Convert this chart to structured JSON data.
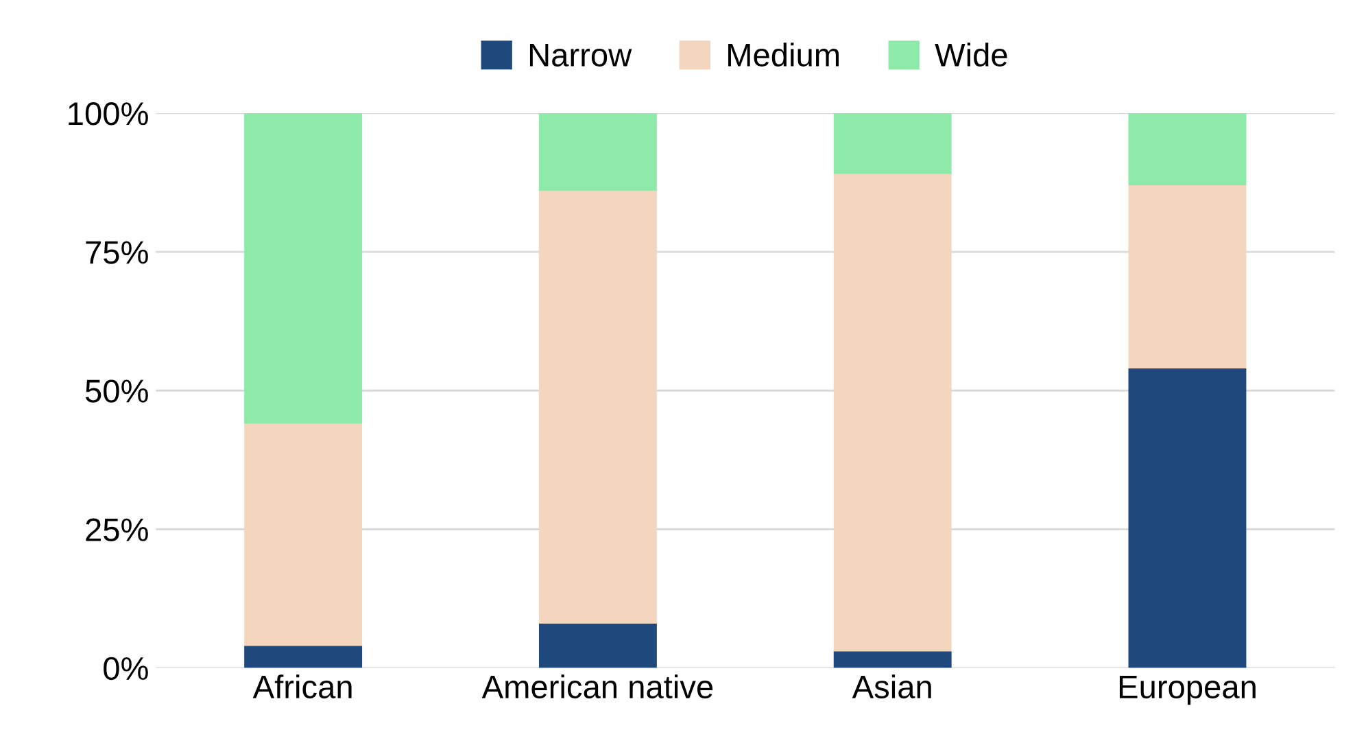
{
  "chart_data": {
    "type": "bar",
    "stacked": true,
    "categories": [
      "African",
      "American native",
      "Asian",
      "European"
    ],
    "series": [
      {
        "name": "Narrow",
        "color": "#1f497d",
        "values": [
          4,
          8,
          3,
          54
        ]
      },
      {
        "name": "Medium",
        "color": "#f4d5bd",
        "values": [
          40,
          78,
          86,
          33
        ]
      },
      {
        "name": "Wide",
        "color": "#8eeaa9",
        "values": [
          56,
          14,
          11,
          13
        ]
      }
    ],
    "ylim": [
      0,
      100
    ],
    "yticks": [
      {
        "value": 0,
        "label": "0%"
      },
      {
        "value": 25,
        "label": "25%"
      },
      {
        "value": 50,
        "label": "50%"
      },
      {
        "value": 75,
        "label": "75%"
      },
      {
        "value": 100,
        "label": "100%"
      }
    ],
    "grid": "y",
    "legend": "top"
  }
}
